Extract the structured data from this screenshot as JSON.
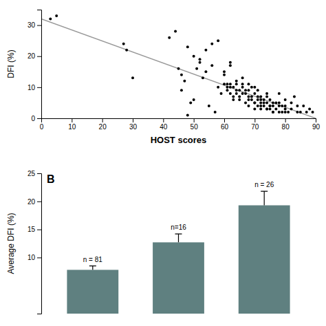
{
  "chart_data": [
    {
      "type": "scatter",
      "xlabel": "HOST scores",
      "ylabel": "DFI (%)",
      "xlim": [
        0,
        90
      ],
      "ylim": [
        0,
        35
      ],
      "xticks": [
        0,
        10,
        20,
        30,
        40,
        50,
        60,
        70,
        80,
        90
      ],
      "yticks": [
        0,
        10,
        20,
        30
      ],
      "series": [
        {
          "type": "scatter",
          "color": "#000000",
          "x": [
            3,
            5,
            27,
            30,
            28,
            45,
            46,
            47,
            48,
            49,
            50,
            51,
            52,
            53,
            54,
            55,
            56,
            57,
            58,
            59,
            60,
            60,
            61,
            61,
            62,
            62,
            62,
            63,
            63,
            64,
            64,
            65,
            65,
            66,
            66,
            67,
            67,
            68,
            68,
            68,
            69,
            69,
            70,
            70,
            70,
            71,
            71,
            71,
            72,
            72,
            72,
            73,
            73,
            74,
            74,
            74,
            75,
            75,
            75,
            76,
            76,
            77,
            77,
            78,
            78,
            79,
            79,
            80,
            80,
            81,
            82,
            83,
            84,
            85,
            86,
            87,
            88,
            89,
            42,
            44,
            46,
            48,
            50,
            52,
            54,
            56,
            58,
            60,
            62,
            64,
            66,
            68,
            70,
            72,
            74,
            76,
            78,
            80,
            61,
            63,
            65,
            67,
            69,
            71,
            73,
            75,
            62,
            64,
            66,
            68,
            70,
            72,
            74,
            76,
            78,
            80,
            82,
            84
          ],
          "values": [
            32,
            33,
            24,
            13,
            22,
            16,
            14,
            12,
            1,
            5,
            6,
            16,
            18,
            13,
            15,
            4,
            17,
            2,
            10,
            8,
            14,
            11,
            10,
            9,
            10,
            8,
            11,
            7,
            6,
            9,
            8,
            7,
            6,
            10,
            11,
            5,
            9,
            7,
            9,
            4,
            10,
            6,
            8,
            5,
            3,
            7,
            4,
            9,
            5,
            3,
            7,
            6,
            4,
            5,
            3,
            8,
            4,
            3,
            6,
            4,
            2,
            3,
            5,
            5,
            2,
            2,
            4,
            4,
            2,
            2,
            3,
            7,
            2,
            2,
            4,
            2,
            3,
            2,
            26,
            28,
            9,
            23,
            20,
            19,
            22,
            24,
            25,
            15,
            17,
            11,
            13,
            11,
            10,
            6,
            7,
            5,
            8,
            6,
            11,
            10,
            9,
            8,
            7,
            6,
            5,
            4,
            18,
            12,
            8,
            6,
            5,
            4,
            3,
            2,
            4,
            3,
            5,
            4
          ]
        },
        {
          "type": "line",
          "color": "#999999",
          "x": [
            0,
            90
          ],
          "values": [
            32,
            0
          ]
        }
      ]
    },
    {
      "type": "bar",
      "title": "B",
      "ylabel": "Average DFI (%)",
      "categories": [
        null,
        null,
        null
      ],
      "values": [
        7.8,
        12.7,
        19.3
      ],
      "errors": [
        0.7,
        1.5,
        2.5
      ],
      "annotations": [
        "n = 81",
        "n=16",
        "n = 26"
      ],
      "color": "#5f8080",
      "ylim": [
        0,
        25
      ],
      "yticks": [
        10,
        15,
        20,
        25
      ]
    }
  ]
}
